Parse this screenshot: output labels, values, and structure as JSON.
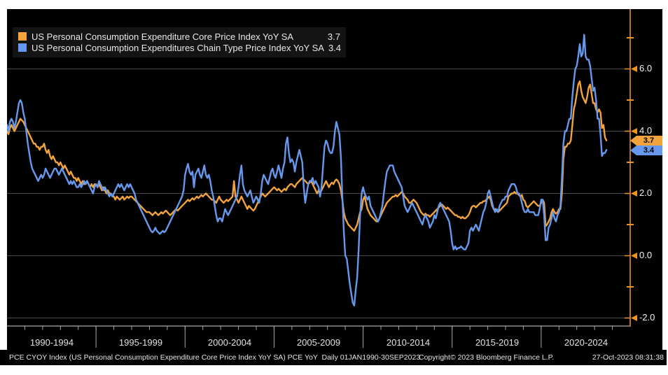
{
  "colors": {
    "core_line": "#F2A33C",
    "headline_line": "#6699EE",
    "axis": "#B5761B",
    "axis_accent": "#F0941E",
    "gridline": "#4a4a4a",
    "baseline": "#a8a8a8",
    "background": "#000000",
    "legend_bg": "#141414"
  },
  "legend": {
    "items": [
      {
        "label": "US Personal Consumption Expenditure Core Price Index YoY SA",
        "value": "3.7",
        "color": "#F2A33C"
      },
      {
        "label": "US Personal Consumption Expenditures Chain Type Price Index YoY SA",
        "value": "3.4",
        "color": "#6699EE"
      }
    ]
  },
  "y_axis": {
    "tick_labels": [
      "6.0",
      "4.0",
      "2.0",
      "0.0",
      "-2.0"
    ],
    "tick_values": [
      6,
      4,
      2,
      0,
      -2
    ],
    "minor_tick_values": [
      7,
      5,
      3,
      1,
      -1
    ],
    "last_price_labels": [
      {
        "text": "3.7",
        "value": 3.7,
        "color": "#F2A33C"
      },
      {
        "text": "3.4",
        "value": 3.4,
        "color": "#6699EE"
      }
    ]
  },
  "x_axis": {
    "period_labels": [
      "1990-1994",
      "1995-1999",
      "2000-2004",
      "2005-2009",
      "2010-2014",
      "2015-2019",
      "2020-2024"
    ]
  },
  "footer": {
    "left": "PCE CYOY Index (US Personal Consumption Expenditure Core Price Index YoY SA) PCE YoY  Daily 01JAN1990-30SEP2023",
    "center": "Copyright© 2023 Bloomberg Finance L.P.",
    "right": "27-Oct-2023 08:31:38"
  },
  "chart_data": {
    "type": "line",
    "x_start": "1990-01",
    "x_end": "2023-09",
    "x_unit": "month",
    "x_axis_span_years": [
      1990,
      2025
    ],
    "ylim": [
      -2.3,
      7.9
    ],
    "y_gridlines": [
      6,
      4,
      2,
      0,
      -2
    ],
    "grid": true,
    "legend_position": "top-left",
    "x_section_labels": [
      "1990-1994",
      "1995-1999",
      "2000-2004",
      "2005-2009",
      "2010-2014",
      "2015-2019",
      "2020-2024"
    ],
    "series": [
      {
        "name": "US Personal Consumption Expenditure Core Price Index YoY SA",
        "color": "#F2A33C",
        "last": 3.7,
        "values": [
          4.0,
          3.9,
          4.1,
          4.2,
          4.1,
          4.0,
          4.1,
          4.2,
          4.3,
          4.4,
          4.35,
          4.3,
          4.2,
          4.1,
          4.0,
          3.9,
          3.8,
          3.7,
          3.6,
          3.6,
          3.5,
          3.5,
          3.4,
          3.5,
          3.5,
          3.6,
          3.4,
          3.3,
          3.4,
          3.2,
          3.1,
          3.2,
          3.1,
          3.0,
          3.0,
          2.9,
          3.0,
          2.9,
          2.8,
          2.9,
          2.8,
          2.7,
          2.6,
          2.7,
          2.6,
          2.5,
          2.5,
          2.4,
          2.5,
          2.4,
          2.3,
          2.4,
          2.3,
          2.3,
          2.4,
          2.3,
          2.2,
          2.3,
          2.2,
          2.3,
          2.3,
          2.2,
          2.3,
          2.2,
          2.1,
          2.2,
          2.1,
          2.0,
          2.1,
          2.0,
          2.0,
          1.9,
          1.9,
          1.8,
          1.9,
          1.85,
          1.8,
          1.85,
          1.9,
          1.8,
          1.85,
          1.9,
          1.85,
          1.9,
          1.9,
          1.85,
          1.8,
          1.75,
          1.7,
          1.65,
          1.6,
          1.55,
          1.5,
          1.45,
          1.4,
          1.4,
          1.4,
          1.35,
          1.3,
          1.35,
          1.4,
          1.35,
          1.3,
          1.35,
          1.4,
          1.35,
          1.4,
          1.45,
          1.4,
          1.35,
          1.3,
          1.35,
          1.4,
          1.45,
          1.5,
          1.45,
          1.5,
          1.55,
          1.6,
          1.65,
          1.7,
          1.75,
          1.8,
          1.75,
          1.8,
          1.85,
          1.8,
          1.85,
          1.9,
          1.85,
          1.9,
          1.95,
          1.9,
          1.95,
          2.0,
          1.95,
          1.9,
          1.85,
          1.8,
          1.8,
          1.75,
          1.7,
          1.8,
          1.9,
          1.8,
          1.75,
          1.7,
          1.75,
          1.8,
          1.75,
          1.8,
          1.85,
          1.9,
          2.4,
          1.9,
          1.8,
          1.7,
          1.8,
          1.9,
          1.8,
          1.7,
          1.6,
          1.5,
          1.6,
          1.55,
          1.5,
          1.45,
          1.5,
          1.6,
          1.7,
          1.8,
          1.9,
          2.0,
          1.95,
          1.9,
          1.95,
          2.0,
          2.05,
          2.1,
          2.15,
          2.2,
          2.15,
          2.1,
          2.15,
          2.1,
          2.05,
          2.1,
          2.15,
          2.1,
          2.2,
          2.25,
          2.3,
          2.3,
          2.25,
          2.2,
          2.3,
          2.35,
          2.4,
          2.45,
          2.5,
          2.45,
          2.4,
          2.35,
          2.3,
          2.35,
          2.4,
          2.3,
          2.2,
          2.1,
          2.0,
          2.1,
          2.0,
          2.1,
          2.2,
          2.3,
          2.4,
          2.3,
          2.2,
          2.3,
          2.35,
          2.3,
          2.4,
          2.45,
          2.4,
          2.3,
          2.1,
          1.8,
          1.4,
          1.2,
          1.1,
          1.0,
          0.95,
          0.9,
          0.85,
          0.8,
          0.9,
          1.0,
          1.2,
          1.4,
          1.5,
          1.8,
          1.9,
          1.7,
          1.5,
          1.4,
          1.3,
          1.25,
          1.2,
          1.15,
          1.1,
          1.1,
          1.2,
          1.3,
          1.4,
          1.5,
          1.6,
          1.7,
          1.75,
          1.8,
          1.85,
          1.9,
          1.9,
          1.95,
          1.9,
          1.95,
          2.0,
          2.05,
          2.0,
          1.9,
          1.85,
          1.8,
          1.7,
          1.7,
          1.75,
          1.8,
          1.75,
          1.7,
          1.6,
          1.5,
          1.4,
          1.35,
          1.3,
          1.35,
          1.3,
          1.3,
          1.25,
          1.3,
          1.35,
          1.4,
          1.45,
          1.5,
          1.55,
          1.6,
          1.65,
          1.6,
          1.55,
          1.5,
          1.55,
          1.5,
          1.45,
          1.4,
          1.35,
          1.3,
          1.3,
          1.25,
          1.25,
          1.2,
          1.25,
          1.2,
          1.2,
          1.25,
          1.3,
          1.4,
          1.55,
          1.6,
          1.6,
          1.55,
          1.6,
          1.65,
          1.7,
          1.7,
          1.75,
          1.75,
          1.8,
          1.85,
          1.9,
          1.8,
          1.6,
          1.5,
          1.5,
          1.45,
          1.4,
          1.45,
          1.5,
          1.55,
          1.6,
          1.65,
          1.7,
          1.9,
          1.95,
          2.0,
          2.0,
          2.05,
          2.0,
          2.0,
          1.95,
          1.9,
          1.95,
          1.8,
          1.75,
          1.6,
          1.55,
          1.6,
          1.65,
          1.7,
          1.75,
          1.7,
          1.65,
          1.6,
          1.6,
          1.7,
          1.8,
          1.7,
          0.95,
          1.0,
          1.1,
          1.2,
          1.4,
          1.5,
          1.4,
          1.35,
          1.4,
          1.5,
          1.5,
          2.0,
          3.1,
          3.5,
          3.5,
          3.6,
          3.6,
          3.7,
          4.2,
          4.7,
          4.9,
          5.2,
          5.5,
          5.6,
          5.3,
          5.1,
          5.0,
          4.9,
          5.1,
          5.4,
          5.5,
          5.2,
          4.9,
          4.9,
          4.7,
          4.6,
          4.7,
          4.6,
          4.1,
          4.2,
          3.8,
          3.7
        ]
      },
      {
        "name": "US Personal Consumption Expenditures Chain Type Price Index YoY SA",
        "color": "#6699EE",
        "last": 3.4,
        "values": [
          4.2,
          4.0,
          4.3,
          4.4,
          4.3,
          4.1,
          4.3,
          4.6,
          4.9,
          5.0,
          4.9,
          4.6,
          4.4,
          4.0,
          3.6,
          3.3,
          3.0,
          2.8,
          2.7,
          2.6,
          2.5,
          2.4,
          2.5,
          2.6,
          2.5,
          2.6,
          2.8,
          2.7,
          2.6,
          2.5,
          2.6,
          2.7,
          2.8,
          2.8,
          2.7,
          2.6,
          2.7,
          2.8,
          2.7,
          2.6,
          2.5,
          2.4,
          2.3,
          2.4,
          2.3,
          2.4,
          2.3,
          2.2,
          2.2,
          2.3,
          2.2,
          2.3,
          2.4,
          2.3,
          2.4,
          2.3,
          2.2,
          2.1,
          2.0,
          2.2,
          2.3,
          2.2,
          2.4,
          2.3,
          2.2,
          2.1,
          2.2,
          2.1,
          2.0,
          1.9,
          2.0,
          1.9,
          2.0,
          2.1,
          2.2,
          2.3,
          2.2,
          2.3,
          2.2,
          2.1,
          2.2,
          2.3,
          2.2,
          2.3,
          2.2,
          2.1,
          2.0,
          1.8,
          1.7,
          1.6,
          1.5,
          1.4,
          1.3,
          1.2,
          1.1,
          1.0,
          0.9,
          0.8,
          0.75,
          0.8,
          0.9,
          0.8,
          0.75,
          0.7,
          0.75,
          0.8,
          0.75,
          0.8,
          0.9,
          1.0,
          1.1,
          1.2,
          1.3,
          1.4,
          1.5,
          1.6,
          1.7,
          1.8,
          1.9,
          2.1,
          2.6,
          2.8,
          2.95,
          2.7,
          2.6,
          2.7,
          2.2,
          2.6,
          2.7,
          2.8,
          2.6,
          2.5,
          2.7,
          2.9,
          2.6,
          2.5,
          2.6,
          2.4,
          2.1,
          1.9,
          1.6,
          1.3,
          1.1,
          1.2,
          1.2,
          1.1,
          1.3,
          1.5,
          1.4,
          1.3,
          1.4,
          1.5,
          1.6,
          1.7,
          1.8,
          1.9,
          2.2,
          2.6,
          2.9,
          2.3,
          2.1,
          2.0,
          1.9,
          2.0,
          2.1,
          1.9,
          1.7,
          1.8,
          1.9,
          1.8,
          1.7,
          2.0,
          2.4,
          2.6,
          2.5,
          2.4,
          2.3,
          2.5,
          2.7,
          2.8,
          2.6,
          2.5,
          2.7,
          2.9,
          2.7,
          2.5,
          2.8,
          3.0,
          3.6,
          3.8,
          3.3,
          3.0,
          3.1,
          3.0,
          2.7,
          3.0,
          3.2,
          3.4,
          3.2,
          3.0,
          2.2,
          1.7,
          2.0,
          2.3,
          2.4,
          2.4,
          2.5,
          2.3,
          2.4,
          2.3,
          2.2,
          1.9,
          2.2,
          2.9,
          3.5,
          3.7,
          3.6,
          3.4,
          3.3,
          3.3,
          3.5,
          4.0,
          4.3,
          4.1,
          3.9,
          3.2,
          1.9,
          0.8,
          0.0,
          -0.1,
          -0.5,
          -0.9,
          -1.2,
          -1.5,
          -1.6,
          -1.1,
          -0.7,
          0.2,
          1.3,
          2.0,
          2.2,
          2.0,
          1.9,
          1.8,
          1.9,
          1.6,
          1.5,
          1.4,
          1.3,
          1.2,
          1.1,
          1.2,
          1.4,
          1.6,
          2.0,
          2.4,
          2.7,
          2.8,
          2.9,
          2.9,
          2.9,
          2.7,
          2.6,
          2.5,
          2.4,
          2.3,
          2.2,
          1.9,
          1.6,
          1.5,
          1.4,
          1.5,
          1.6,
          1.7,
          1.6,
          1.5,
          1.4,
          1.3,
          1.2,
          1.1,
          1.0,
          1.2,
          1.3,
          1.2,
          1.1,
          0.9,
          1.0,
          1.1,
          1.3,
          1.2,
          1.4,
          1.6,
          1.7,
          1.6,
          1.5,
          1.4,
          1.3,
          1.2,
          1.1,
          0.8,
          0.4,
          0.2,
          0.3,
          0.2,
          0.25,
          0.25,
          0.3,
          0.25,
          0.2,
          0.2,
          0.3,
          0.4,
          0.8,
          0.9,
          0.8,
          0.9,
          1.0,
          0.9,
          0.8,
          1.0,
          1.2,
          1.4,
          1.5,
          1.7,
          2.0,
          2.1,
          1.9,
          1.7,
          1.5,
          1.4,
          1.5,
          1.4,
          1.6,
          1.7,
          1.8,
          1.8,
          1.9,
          1.9,
          2.1,
          2.2,
          2.3,
          2.3,
          2.3,
          2.2,
          2.0,
          2.0,
          1.9,
          1.7,
          1.5,
          1.4,
          1.4,
          1.5,
          1.4,
          1.4,
          1.4,
          1.4,
          1.3,
          1.3,
          1.3,
          1.5,
          1.8,
          1.8,
          1.3,
          0.5,
          0.5,
          0.9,
          1.0,
          1.2,
          1.4,
          1.2,
          1.1,
          1.3,
          1.4,
          1.6,
          2.5,
          3.6,
          4.0,
          4.0,
          4.2,
          4.4,
          4.4,
          5.1,
          5.6,
          6.0,
          6.1,
          6.4,
          6.8,
          6.4,
          6.5,
          7.1,
          6.4,
          6.3,
          6.3,
          6.1,
          5.7,
          5.3,
          5.4,
          5.0,
          4.4,
          4.4,
          3.9,
          3.2,
          3.3,
          3.3,
          3.4
        ]
      }
    ]
  }
}
